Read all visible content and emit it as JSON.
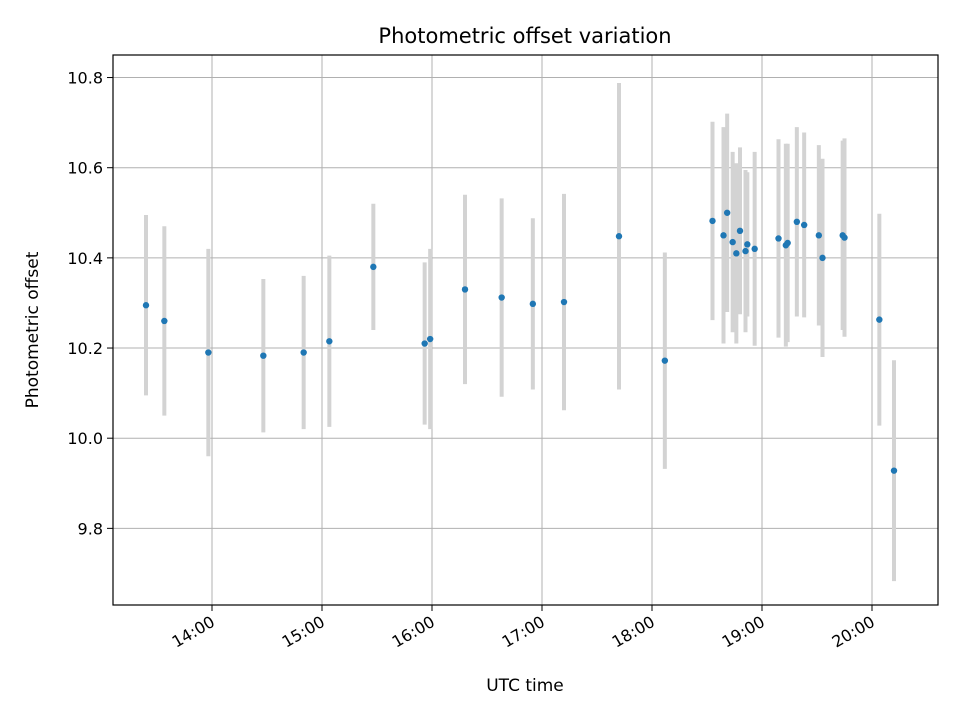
{
  "chart_data": {
    "type": "scatter",
    "title": "Photometric offset variation",
    "xlabel": "UTC time",
    "ylabel": "Photometric offset",
    "x_tick_labels": [
      "14:00",
      "15:00",
      "16:00",
      "17:00",
      "18:00",
      "19:00",
      "20:00"
    ],
    "y_tick_labels": [
      "9.8",
      "10.0",
      "10.2",
      "10.4",
      "10.6",
      "10.8"
    ],
    "xlim": [
      "13:06",
      "20:36"
    ],
    "ylim": [
      9.63,
      10.85
    ],
    "grid": true,
    "point_color": "#1f77b4",
    "errorbar_color": "#d3d3d3",
    "points": [
      {
        "t": "13:24",
        "y": 10.295,
        "err": 0.2
      },
      {
        "t": "13:34",
        "y": 10.26,
        "err": 0.21
      },
      {
        "t": "13:58",
        "y": 10.19,
        "err": 0.23
      },
      {
        "t": "14:28",
        "y": 10.183,
        "err": 0.17
      },
      {
        "t": "14:50",
        "y": 10.19,
        "err": 0.17
      },
      {
        "t": "15:04",
        "y": 10.215,
        "err": 0.19
      },
      {
        "t": "15:28",
        "y": 10.38,
        "err": 0.14
      },
      {
        "t": "15:56",
        "y": 10.21,
        "err": 0.18
      },
      {
        "t": "15:59",
        "y": 10.22,
        "err": 0.2
      },
      {
        "t": "16:18",
        "y": 10.33,
        "err": 0.21
      },
      {
        "t": "16:38",
        "y": 10.312,
        "err": 0.22
      },
      {
        "t": "16:55",
        "y": 10.298,
        "err": 0.19
      },
      {
        "t": "17:12",
        "y": 10.302,
        "err": 0.24
      },
      {
        "t": "17:42",
        "y": 10.448,
        "err": 0.34
      },
      {
        "t": "18:07",
        "y": 10.172,
        "err": 0.24
      },
      {
        "t": "18:33",
        "y": 10.482,
        "err": 0.22
      },
      {
        "t": "18:39",
        "y": 10.45,
        "err": 0.24
      },
      {
        "t": "18:41",
        "y": 10.5,
        "err": 0.22
      },
      {
        "t": "18:44",
        "y": 10.435,
        "err": 0.2
      },
      {
        "t": "18:46",
        "y": 10.41,
        "err": 0.2
      },
      {
        "t": "18:48",
        "y": 10.46,
        "err": 0.185
      },
      {
        "t": "18:51",
        "y": 10.415,
        "err": 0.18
      },
      {
        "t": "18:52",
        "y": 10.43,
        "err": 0.16
      },
      {
        "t": "18:56",
        "y": 10.42,
        "err": 0.215
      },
      {
        "t": "19:09",
        "y": 10.443,
        "err": 0.22
      },
      {
        "t": "19:13",
        "y": 10.428,
        "err": 0.225
      },
      {
        "t": "19:14",
        "y": 10.433,
        "err": 0.22
      },
      {
        "t": "19:19",
        "y": 10.48,
        "err": 0.21
      },
      {
        "t": "19:23",
        "y": 10.473,
        "err": 0.205
      },
      {
        "t": "19:31",
        "y": 10.45,
        "err": 0.2
      },
      {
        "t": "19:33",
        "y": 10.4,
        "err": 0.22
      },
      {
        "t": "19:44",
        "y": 10.45,
        "err": 0.21
      },
      {
        "t": "19:45",
        "y": 10.445,
        "err": 0.22
      },
      {
        "t": "20:04",
        "y": 10.263,
        "err": 0.235
      },
      {
        "t": "20:12",
        "y": 9.928,
        "err": 0.245
      }
    ]
  }
}
